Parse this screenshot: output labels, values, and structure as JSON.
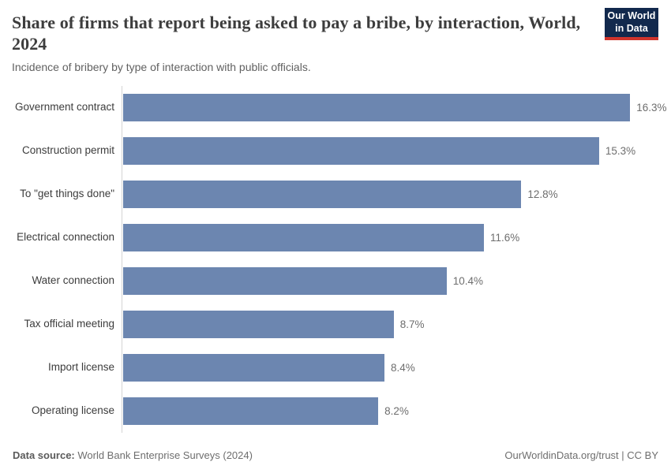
{
  "header": {
    "title": "Share of firms that report being asked to pay a bribe, by interaction, World, 2024",
    "subtitle": "Incidence of bribery by type of interaction with public officials.",
    "logo": {
      "line1": "Our World",
      "line2": "in Data"
    }
  },
  "chart_data": {
    "type": "bar",
    "orientation": "horizontal",
    "title": "Share of firms that report being asked to pay a bribe, by interaction, World, 2024",
    "subtitle": "Incidence of bribery by type of interaction with public officials.",
    "categories": [
      "Government contract",
      "Construction permit",
      "To \"get things done\"",
      "Electrical connection",
      "Water connection",
      "Tax official meeting",
      "Import license",
      "Operating license"
    ],
    "values": [
      16.3,
      15.3,
      12.8,
      11.6,
      10.4,
      8.7,
      8.4,
      8.2
    ],
    "value_labels": [
      "16.3%",
      "15.3%",
      "12.8%",
      "11.6%",
      "10.4%",
      "8.7%",
      "8.4%",
      "8.2%"
    ],
    "xlim": [
      0,
      16.3
    ],
    "grid": false,
    "legend": "none",
    "bar_color": "#6c86b0",
    "axis_color": "#d4d4d4"
  },
  "footer": {
    "datasource_label": "Data source:",
    "datasource_value": " World Bank Enterprise Surveys (2024)",
    "attribution": "OurWorldinData.org/trust | CC BY"
  },
  "colors": {
    "bar": "#6c86b0",
    "logo_navy": "#12294d",
    "logo_red": "#d0342c",
    "title_text": "#3d3d3d",
    "subtitle_text": "#616161"
  }
}
